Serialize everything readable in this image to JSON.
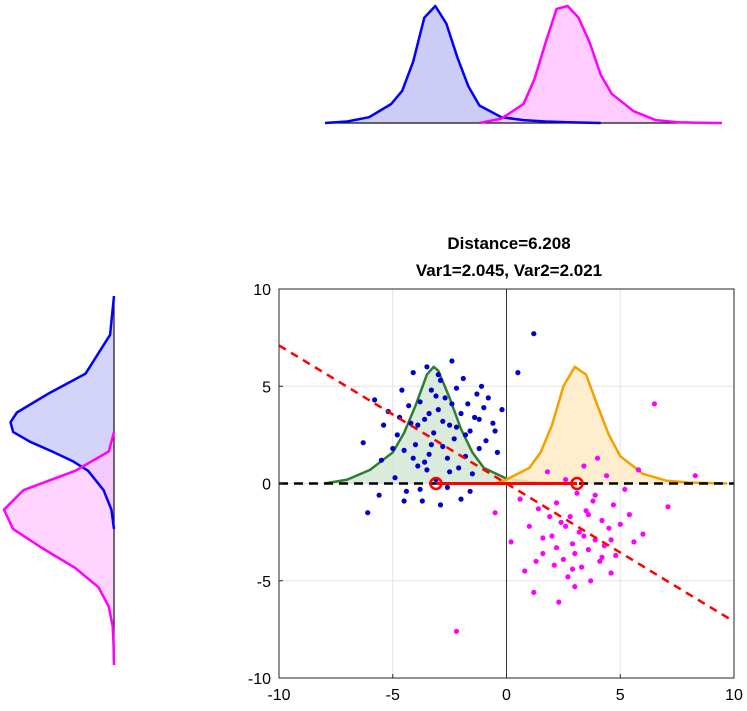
{
  "chart_data": [
    {
      "type": "area",
      "panel": "top-marginal",
      "series": [
        {
          "name": "",
          "color": "#0000ff",
          "fill": "#c6c6f5",
          "x": [
            -8,
            -7,
            -6,
            -5,
            -4.5,
            -4,
            -3.5,
            -3,
            -2.5,
            -2,
            -1.5,
            -1,
            0,
            1,
            2,
            3,
            4,
            4.5
          ],
          "y": [
            0,
            0.01,
            0.04,
            0.13,
            0.22,
            0.42,
            0.72,
            0.8,
            0.68,
            0.45,
            0.25,
            0.12,
            0.04,
            0.02,
            0.01,
            0.005,
            0.002,
            0
          ]
        },
        {
          "name": "",
          "color": "#ff00ff",
          "fill": "#ffc6ff",
          "x": [
            -1,
            0,
            1,
            1.5,
            2,
            2.5,
            3,
            3.5,
            4,
            4.5,
            5,
            6,
            7,
            8,
            9,
            10
          ],
          "y": [
            0,
            0.03,
            0.13,
            0.3,
            0.55,
            0.78,
            0.8,
            0.72,
            0.55,
            0.33,
            0.2,
            0.08,
            0.02,
            0.005,
            0.002,
            0
          ]
        }
      ]
    },
    {
      "type": "area",
      "panel": "left-marginal",
      "series": [
        {
          "name": "",
          "color": "#0000ff",
          "fill": "#c6c6f5",
          "y": [
            10,
            8,
            6,
            5,
            4,
            3.5,
            3,
            2.5,
            2,
            1.5,
            1,
            0,
            -1,
            -2
          ],
          "x": [
            0,
            0.03,
            0.22,
            0.5,
            0.75,
            0.8,
            0.78,
            0.65,
            0.48,
            0.32,
            0.2,
            0.08,
            0.02,
            0
          ]
        },
        {
          "name": "",
          "color": "#ff00ff",
          "fill": "#ffc6ff",
          "y": [
            3,
            2,
            1,
            0,
            -1,
            -2,
            -3,
            -4,
            -5,
            -6,
            -7,
            -8,
            -9
          ],
          "x": [
            0,
            0.04,
            0.3,
            0.7,
            0.85,
            0.78,
            0.55,
            0.3,
            0.12,
            0.04,
            0.01,
            0.003,
            0
          ]
        }
      ]
    },
    {
      "type": "scatter",
      "panel": "main",
      "title": "Distance=6.208",
      "subtitle": "Var1=2.045, Var2=2.021",
      "xlim": [
        -10,
        10
      ],
      "ylim": [
        -10,
        10
      ],
      "xticks": [
        "-10",
        "-5",
        "0",
        "5",
        "10"
      ],
      "yticks": [
        "10",
        "5",
        "0",
        "-5",
        "-10"
      ],
      "xtick_values": [
        -10,
        -5,
        0,
        5,
        10
      ],
      "ytick_values": [
        10,
        5,
        0,
        -5,
        -10
      ],
      "grid": true,
      "series": [
        {
          "name": "",
          "kind": "points",
          "color": "#0000cd",
          "points": [
            [
              -6.3,
              2.1
            ],
            [
              -5.8,
              4.3
            ],
            [
              -5.5,
              1.2
            ],
            [
              -5.6,
              -0.6
            ],
            [
              -6.1,
              -1.5
            ],
            [
              -5.2,
              3.7
            ],
            [
              -4.8,
              2.5
            ],
            [
              -4.9,
              0.3
            ],
            [
              -4.6,
              4.8
            ],
            [
              -4.5,
              1.7
            ],
            [
              -4.4,
              -0.4
            ],
            [
              -4.2,
              3.1
            ],
            [
              -4.1,
              5.7
            ],
            [
              -4.0,
              2.0
            ],
            [
              -3.9,
              0.9
            ],
            [
              -3.8,
              4.2
            ],
            [
              -3.7,
              -0.9
            ],
            [
              -3.6,
              3.3
            ],
            [
              -3.5,
              6.0
            ],
            [
              -3.4,
              1.5
            ],
            [
              -3.3,
              4.8
            ],
            [
              -3.2,
              2.6
            ],
            [
              -3.1,
              0.2
            ],
            [
              -3.0,
              3.8
            ],
            [
              -2.9,
              5.3
            ],
            [
              -2.8,
              1.9
            ],
            [
              -2.7,
              4.4
            ],
            [
              -2.6,
              -0.2
            ],
            [
              -2.5,
              3.0
            ],
            [
              -2.4,
              6.3
            ],
            [
              -2.3,
              2.3
            ],
            [
              -2.2,
              4.9
            ],
            [
              -2.1,
              0.8
            ],
            [
              -2.0,
              3.6
            ],
            [
              -1.9,
              5.4
            ],
            [
              -1.8,
              1.4
            ],
            [
              -1.7,
              4.1
            ],
            [
              -1.6,
              2.7
            ],
            [
              -1.5,
              0.5
            ],
            [
              -1.4,
              3.4
            ],
            [
              -1.3,
              4.6
            ],
            [
              -1.2,
              1.8
            ],
            [
              -1.1,
              5.0
            ],
            [
              -1.0,
              3.9
            ],
            [
              -0.9,
              2.2
            ],
            [
              -0.8,
              4.4
            ],
            [
              -0.6,
              3.1
            ],
            [
              -0.4,
              1.6
            ],
            [
              -0.2,
              3.8
            ],
            [
              0.5,
              5.7
            ],
            [
              1.2,
              7.7
            ],
            [
              -3.9,
              3.0
            ],
            [
              -3.6,
              1.1
            ],
            [
              -3.3,
              2.0
            ],
            [
              -3.0,
              5.6
            ],
            [
              -2.8,
              3.2
            ],
            [
              -2.6,
              1.3
            ],
            [
              -2.4,
              4.1
            ],
            [
              -3.4,
              3.6
            ],
            [
              -4.3,
              4.0
            ],
            [
              -2.2,
              2.9
            ],
            [
              -4.7,
              3.4
            ],
            [
              -3.1,
              4.5
            ],
            [
              -2.5,
              0.6
            ],
            [
              -3.8,
              -0.3
            ],
            [
              -4.5,
              -0.9
            ],
            [
              -2.9,
              -1.1
            ],
            [
              -2.0,
              -0.8
            ],
            [
              -1.6,
              -0.4
            ],
            [
              -3.5,
              0.7
            ],
            [
              -5.0,
              1.8
            ],
            [
              -5.4,
              3.0
            ],
            [
              -4.1,
              1.3
            ],
            [
              -1.8,
              2.5
            ],
            [
              -1.2,
              3.3
            ],
            [
              -0.5,
              2.7
            ]
          ]
        },
        {
          "name": "",
          "kind": "points",
          "color": "#ff00ff",
          "points": [
            [
              -0.5,
              -1.5
            ],
            [
              0.2,
              -3.0
            ],
            [
              0.6,
              -0.8
            ],
            [
              0.8,
              -4.5
            ],
            [
              1.0,
              -2.2
            ],
            [
              1.2,
              -5.6
            ],
            [
              1.4,
              -1.3
            ],
            [
              1.6,
              -3.6
            ],
            [
              1.8,
              0.6
            ],
            [
              2.0,
              -2.7
            ],
            [
              2.1,
              -4.2
            ],
            [
              2.2,
              -1.0
            ],
            [
              2.3,
              -6.1
            ],
            [
              2.4,
              -2.0
            ],
            [
              2.5,
              -3.9
            ],
            [
              2.6,
              0.2
            ],
            [
              2.7,
              -4.8
            ],
            [
              2.8,
              -1.7
            ],
            [
              2.9,
              -3.1
            ],
            [
              3.0,
              -5.3
            ],
            [
              3.1,
              -0.5
            ],
            [
              3.2,
              -2.5
            ],
            [
              3.3,
              -4.3
            ],
            [
              3.4,
              0.9
            ],
            [
              3.5,
              -1.4
            ],
            [
              3.6,
              -3.4
            ],
            [
              3.7,
              -5.0
            ],
            [
              3.8,
              -0.9
            ],
            [
              3.9,
              -2.9
            ],
            [
              4.0,
              1.3
            ],
            [
              4.1,
              -4.0
            ],
            [
              4.2,
              -1.9
            ],
            [
              4.3,
              -3.2
            ],
            [
              4.4,
              0.4
            ],
            [
              4.5,
              -2.3
            ],
            [
              4.6,
              -4.6
            ],
            [
              4.7,
              -1.1
            ],
            [
              4.8,
              -3.7
            ],
            [
              5.0,
              -2.1
            ],
            [
              5.2,
              -0.3
            ],
            [
              5.4,
              -1.6
            ],
            [
              5.6,
              -3.0
            ],
            [
              5.8,
              0.7
            ],
            [
              6.0,
              -2.6
            ],
            [
              6.5,
              4.1
            ],
            [
              7.1,
              -1.2
            ],
            [
              8.3,
              0.4
            ],
            [
              -2.2,
              -7.6
            ],
            [
              1.6,
              -2.8
            ],
            [
              2.6,
              -2.2
            ],
            [
              3.0,
              -3.6
            ],
            [
              3.6,
              -1.6
            ],
            [
              2.2,
              -3.3
            ],
            [
              3.4,
              -2.7
            ],
            [
              4.2,
              -3.8
            ],
            [
              1.3,
              -4.0
            ],
            [
              2.9,
              -4.4
            ],
            [
              1.9,
              -1.7
            ],
            [
              3.9,
              -0.6
            ],
            [
              4.6,
              -2.9
            ]
          ]
        },
        {
          "name": "",
          "kind": "area",
          "color": "#2e7d32",
          "fill": "#d3e8d5",
          "x": [
            -8,
            -7,
            -6,
            -5,
            -4.5,
            -4,
            -3.5,
            -3.2,
            -3,
            -2.5,
            -2,
            -1.5,
            -1,
            0,
            1,
            2,
            3
          ],
          "y": [
            0,
            0.2,
            0.7,
            1.6,
            2.6,
            4.0,
            5.6,
            6.0,
            5.8,
            4.4,
            2.8,
            1.6,
            0.8,
            0.25,
            0.08,
            0.02,
            0
          ]
        },
        {
          "name": "",
          "kind": "area",
          "color": "#f4a100",
          "fill": "#ffebc6",
          "x": [
            -0.5,
            0,
            1,
            1.5,
            2,
            2.5,
            3,
            3.5,
            4,
            4.5,
            5,
            6,
            7,
            8,
            9,
            9.7
          ],
          "y": [
            0,
            0.2,
            0.8,
            1.6,
            3.0,
            5.0,
            6.0,
            5.6,
            4.0,
            2.5,
            1.4,
            0.5,
            0.15,
            0.05,
            0.02,
            0
          ]
        },
        {
          "name": "",
          "kind": "dashed-line",
          "color": "#000000",
          "x": [
            -10,
            10
          ],
          "y": [
            0,
            0
          ]
        },
        {
          "name": "",
          "kind": "dashed-line",
          "color": "#ff0000",
          "x": [
            -10,
            10
          ],
          "y": [
            7.1,
            -7.1
          ]
        },
        {
          "name": "",
          "kind": "segment",
          "color": "#ff0000",
          "x": [
            -3.1,
            3.1
          ],
          "y": [
            0,
            0
          ]
        },
        {
          "name": "",
          "kind": "markers",
          "color": "#ff0000",
          "x": [
            -3.1,
            3.1
          ],
          "y": [
            0,
            0
          ]
        }
      ]
    }
  ]
}
